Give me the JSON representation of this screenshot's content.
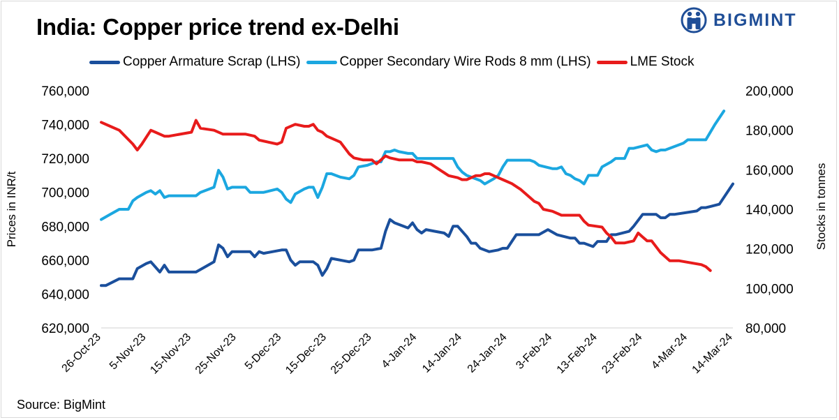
{
  "header": {
    "title": "India: Copper price trend ex-Delhi",
    "brand": "BIGMINT"
  },
  "source": "Source: BigMint",
  "colors": {
    "armature": "#1a4f9c",
    "rods": "#1ba7e0",
    "lme": "#e81b1b",
    "brand": "#1f4e97"
  },
  "chart_data": {
    "type": "line",
    "title": "India: Copper price trend ex-Delhi",
    "ylabel_left": "Prices in INR/t",
    "ylabel_right": "Stocks in tonnes",
    "ylim_left": [
      620000,
      760000
    ],
    "ylim_right": [
      80000,
      200000
    ],
    "yticks_left": [
      620000,
      640000,
      660000,
      680000,
      700000,
      720000,
      740000,
      760000
    ],
    "yticks_right": [
      80000,
      100000,
      120000,
      140000,
      160000,
      180000,
      200000
    ],
    "xlim": [
      0,
      140
    ],
    "grid": false,
    "legend_position": "top",
    "xtick_labels": [
      {
        "day": 0,
        "label": "26-Oct-23"
      },
      {
        "day": 10,
        "label": "5-Nov-23"
      },
      {
        "day": 20,
        "label": "15-Nov-23"
      },
      {
        "day": 30,
        "label": "25-Nov-23"
      },
      {
        "day": 40,
        "label": "5-Dec-23"
      },
      {
        "day": 50,
        "label": "15-Dec-23"
      },
      {
        "day": 60,
        "label": "25-Dec-23"
      },
      {
        "day": 70,
        "label": "4-Jan-24"
      },
      {
        "day": 80,
        "label": "14-Jan-24"
      },
      {
        "day": 90,
        "label": "24-Jan-24"
      },
      {
        "day": 100,
        "label": "3-Feb-24"
      },
      {
        "day": 110,
        "label": "13-Feb-24"
      },
      {
        "day": 120,
        "label": "23-Feb-24"
      },
      {
        "day": 130,
        "label": "4-Mar-24"
      },
      {
        "day": 140,
        "label": "14-Mar-24"
      }
    ],
    "series": [
      {
        "name": "Copper Armature Scrap (LHS)",
        "axis": "left",
        "color": "#1a4f9c",
        "points": [
          [
            0,
            645000
          ],
          [
            1,
            645000
          ],
          [
            4,
            649000
          ],
          [
            7,
            649000
          ],
          [
            8,
            655000
          ],
          [
            10,
            658000
          ],
          [
            11,
            659000
          ],
          [
            13,
            653000
          ],
          [
            14,
            657000
          ],
          [
            15,
            653000
          ],
          [
            21,
            653000
          ],
          [
            25,
            659000
          ],
          [
            26,
            669000
          ],
          [
            27,
            667000
          ],
          [
            28,
            662000
          ],
          [
            29,
            665000
          ],
          [
            33,
            665000
          ],
          [
            34,
            662000
          ],
          [
            35,
            665000
          ],
          [
            36,
            664000
          ],
          [
            40,
            666000
          ],
          [
            41,
            666000
          ],
          [
            42,
            660000
          ],
          [
            43,
            657000
          ],
          [
            44,
            659000
          ],
          [
            47,
            659000
          ],
          [
            48,
            657000
          ],
          [
            49,
            651000
          ],
          [
            50,
            655000
          ],
          [
            51,
            661000
          ],
          [
            55,
            659000
          ],
          [
            56,
            660000
          ],
          [
            57,
            666000
          ],
          [
            60,
            666000
          ],
          [
            62,
            667000
          ],
          [
            63,
            677000
          ],
          [
            64,
            684000
          ],
          [
            65,
            682000
          ],
          [
            67,
            680000
          ],
          [
            68,
            679000
          ],
          [
            69,
            682000
          ],
          [
            70,
            678000
          ],
          [
            71,
            676000
          ],
          [
            72,
            678000
          ],
          [
            74,
            677000
          ],
          [
            76,
            676000
          ],
          [
            77,
            674000
          ],
          [
            78,
            680000
          ],
          [
            79,
            680000
          ],
          [
            81,
            674000
          ],
          [
            82,
            670000
          ],
          [
            83,
            670000
          ],
          [
            84,
            667000
          ],
          [
            86,
            665000
          ],
          [
            88,
            666000
          ],
          [
            89,
            667000
          ],
          [
            90,
            667000
          ],
          [
            92,
            675000
          ],
          [
            97,
            675000
          ],
          [
            99,
            678000
          ],
          [
            101,
            675000
          ],
          [
            104,
            673000
          ],
          [
            105,
            673000
          ],
          [
            106,
            670000
          ],
          [
            107,
            670000
          ],
          [
            109,
            668000
          ],
          [
            110,
            671000
          ],
          [
            112,
            671000
          ],
          [
            113,
            675000
          ],
          [
            114,
            675000
          ],
          [
            117,
            677000
          ],
          [
            118,
            680000
          ],
          [
            120,
            687000
          ],
          [
            123,
            687000
          ],
          [
            124,
            685000
          ],
          [
            125,
            685000
          ],
          [
            126,
            687000
          ],
          [
            127,
            687000
          ],
          [
            132,
            689000
          ],
          [
            133,
            691000
          ],
          [
            134,
            691000
          ],
          [
            137,
            693000
          ],
          [
            140,
            705000
          ]
        ]
      },
      {
        "name": "Copper Secondary Wire Rods 8 mm (LHS)",
        "axis": "left",
        "color": "#1ba7e0",
        "points": [
          [
            0,
            684000
          ],
          [
            2,
            687000
          ],
          [
            4,
            690000
          ],
          [
            6,
            690000
          ],
          [
            7,
            695000
          ],
          [
            8,
            697000
          ],
          [
            10,
            700000
          ],
          [
            11,
            701000
          ],
          [
            12,
            699000
          ],
          [
            13,
            701000
          ],
          [
            14,
            697000
          ],
          [
            15,
            698000
          ],
          [
            21,
            698000
          ],
          [
            22,
            700000
          ],
          [
            25,
            703000
          ],
          [
            26,
            713000
          ],
          [
            27,
            709000
          ],
          [
            28,
            702000
          ],
          [
            29,
            703000
          ],
          [
            32,
            703000
          ],
          [
            33,
            700000
          ],
          [
            36,
            700000
          ],
          [
            39,
            702000
          ],
          [
            40,
            700000
          ],
          [
            41,
            696000
          ],
          [
            42,
            694000
          ],
          [
            43,
            699000
          ],
          [
            45,
            702000
          ],
          [
            46,
            703000
          ],
          [
            47,
            703000
          ],
          [
            48,
            697000
          ],
          [
            49,
            703000
          ],
          [
            50,
            711000
          ],
          [
            51,
            711000
          ],
          [
            53,
            709000
          ],
          [
            55,
            708000
          ],
          [
            56,
            710000
          ],
          [
            57,
            715000
          ],
          [
            59,
            716000
          ],
          [
            61,
            718000
          ],
          [
            62,
            718000
          ],
          [
            63,
            724000
          ],
          [
            64,
            724000
          ],
          [
            65,
            725000
          ],
          [
            66,
            724000
          ],
          [
            68,
            723000
          ],
          [
            69,
            723000
          ],
          [
            70,
            720000
          ],
          [
            76,
            720000
          ],
          [
            77,
            720000
          ],
          [
            78,
            720000
          ],
          [
            79,
            715000
          ],
          [
            80,
            712000
          ],
          [
            81,
            710000
          ],
          [
            84,
            707000
          ],
          [
            85,
            705000
          ],
          [
            87,
            708000
          ],
          [
            88,
            710000
          ],
          [
            89,
            715000
          ],
          [
            90,
            719000
          ],
          [
            95,
            719000
          ],
          [
            96,
            718000
          ],
          [
            97,
            716000
          ],
          [
            100,
            714000
          ],
          [
            101,
            714000
          ],
          [
            102,
            715000
          ],
          [
            103,
            711000
          ],
          [
            104,
            710000
          ],
          [
            105,
            708000
          ],
          [
            106,
            707000
          ],
          [
            107,
            705000
          ],
          [
            108,
            710000
          ],
          [
            110,
            710000
          ],
          [
            111,
            715000
          ],
          [
            113,
            718000
          ],
          [
            114,
            720000
          ],
          [
            116,
            720000
          ],
          [
            117,
            726000
          ],
          [
            118,
            726000
          ],
          [
            121,
            728000
          ],
          [
            122,
            725000
          ],
          [
            123,
            724000
          ],
          [
            124,
            725000
          ],
          [
            125,
            725000
          ],
          [
            129,
            729000
          ],
          [
            130,
            731000
          ],
          [
            134,
            731000
          ],
          [
            136,
            740000
          ],
          [
            138,
            748000
          ]
        ]
      },
      {
        "name": "LME Stock",
        "axis": "right",
        "color": "#e81b1b",
        "points": [
          [
            0,
            184000
          ],
          [
            2,
            182000
          ],
          [
            4,
            180000
          ],
          [
            7,
            173000
          ],
          [
            8,
            170000
          ],
          [
            9,
            173000
          ],
          [
            11,
            180000
          ],
          [
            12,
            179000
          ],
          [
            14,
            177000
          ],
          [
            15,
            177000
          ],
          [
            20,
            179000
          ],
          [
            21,
            185000
          ],
          [
            22,
            181000
          ],
          [
            25,
            180000
          ],
          [
            27,
            178000
          ],
          [
            29,
            178000
          ],
          [
            32,
            178000
          ],
          [
            34,
            177000
          ],
          [
            35,
            175000
          ],
          [
            37,
            174000
          ],
          [
            39,
            173000
          ],
          [
            40,
            174000
          ],
          [
            41,
            181000
          ],
          [
            43,
            183000
          ],
          [
            45,
            182000
          ],
          [
            46,
            182000
          ],
          [
            47,
            183000
          ],
          [
            48,
            180000
          ],
          [
            49,
            179000
          ],
          [
            50,
            177000
          ],
          [
            52,
            175000
          ],
          [
            53,
            174000
          ],
          [
            55,
            168000
          ],
          [
            56,
            166000
          ],
          [
            58,
            165000
          ],
          [
            60,
            165000
          ],
          [
            61,
            163000
          ],
          [
            62,
            165000
          ],
          [
            63,
            167000
          ],
          [
            64,
            166000
          ],
          [
            66,
            165000
          ],
          [
            67,
            165000
          ],
          [
            69,
            165000
          ],
          [
            70,
            164000
          ],
          [
            71,
            164000
          ],
          [
            73,
            163000
          ],
          [
            75,
            160000
          ],
          [
            77,
            157000
          ],
          [
            79,
            156000
          ],
          [
            80,
            155000
          ],
          [
            81,
            155000
          ],
          [
            83,
            157000
          ],
          [
            84,
            157000
          ],
          [
            85,
            158000
          ],
          [
            86,
            158000
          ],
          [
            87,
            157000
          ],
          [
            89,
            155000
          ],
          [
            91,
            153000
          ],
          [
            93,
            150000
          ],
          [
            95,
            146000
          ],
          [
            96,
            144000
          ],
          [
            97,
            143000
          ],
          [
            98,
            140000
          ],
          [
            100,
            139000
          ],
          [
            102,
            137000
          ],
          [
            103,
            137000
          ],
          [
            104,
            137000
          ],
          [
            106,
            137000
          ],
          [
            107,
            134000
          ],
          [
            108,
            132000
          ],
          [
            111,
            131000
          ],
          [
            112,
            128000
          ],
          [
            113,
            126000
          ],
          [
            114,
            123000
          ],
          [
            116,
            123000
          ],
          [
            118,
            124000
          ],
          [
            119,
            128000
          ],
          [
            120,
            126000
          ],
          [
            121,
            124000
          ],
          [
            122,
            124000
          ],
          [
            123,
            121000
          ],
          [
            124,
            118000
          ],
          [
            126,
            114000
          ],
          [
            128,
            114000
          ],
          [
            133,
            112000
          ],
          [
            134,
            111000
          ],
          [
            135,
            109000
          ]
        ]
      }
    ]
  }
}
